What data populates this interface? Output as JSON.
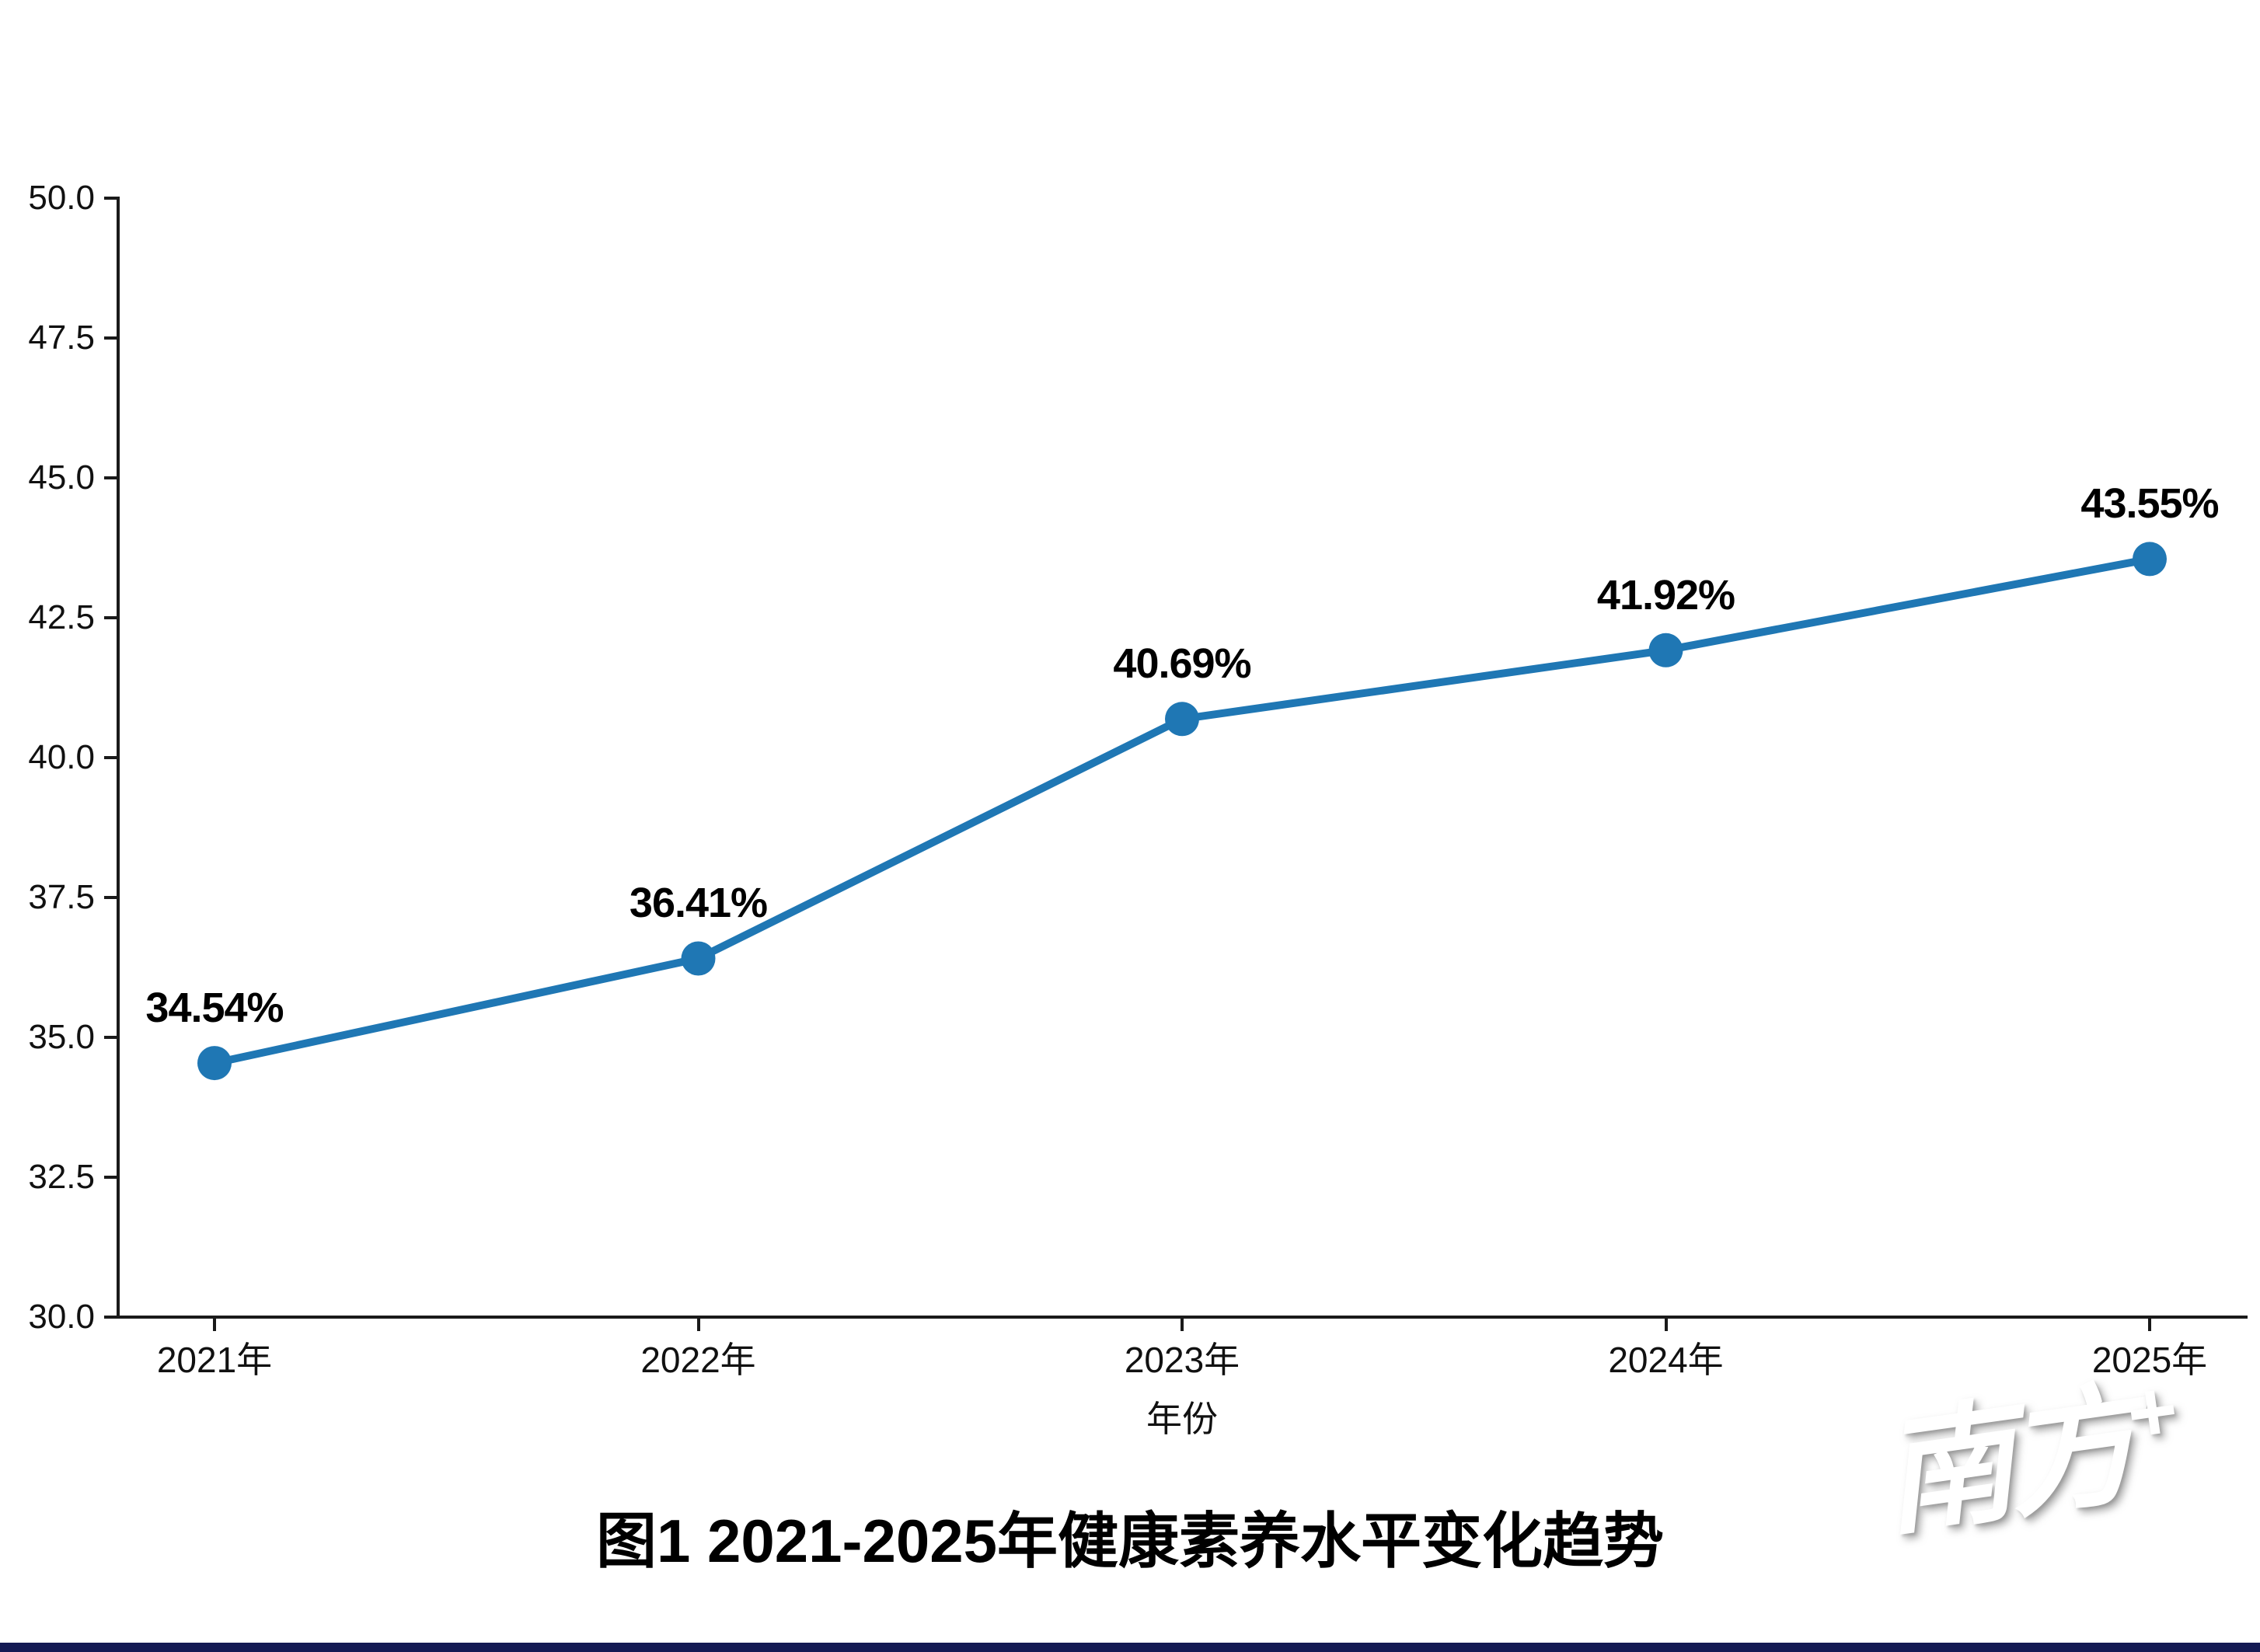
{
  "chart_data": {
    "type": "line",
    "title": "图1 2021-2025年健康素养水平变化趋势",
    "xlabel": "年份",
    "ylabel": "",
    "categories": [
      "2021年",
      "2022年",
      "2023年",
      "2024年",
      "2025年"
    ],
    "series": [
      {
        "name": "健康素养水平",
        "values": [
          34.54,
          36.41,
          40.69,
          41.92,
          43.55
        ]
      }
    ],
    "point_labels": [
      "34.54%",
      "36.41%",
      "40.69%",
      "41.92%",
      "43.55%"
    ],
    "ylim": [
      30.0,
      50.0
    ],
    "yticks": [
      30.0,
      32.5,
      35.0,
      37.5,
      40.0,
      42.5,
      45.0,
      47.5,
      50.0
    ],
    "ytick_labels": [
      "30.0",
      "32.5",
      "35.0",
      "37.5",
      "40.0",
      "42.5",
      "45.0",
      "47.5",
      "50.0"
    ],
    "grid": false,
    "legend": "none",
    "line_color": "#1f77b4",
    "marker_color": "#1f77b4",
    "text_color": "#111111"
  },
  "watermark": {
    "text": "南方",
    "plus": "+"
  },
  "footer": {
    "bar_color": "#141a54"
  }
}
